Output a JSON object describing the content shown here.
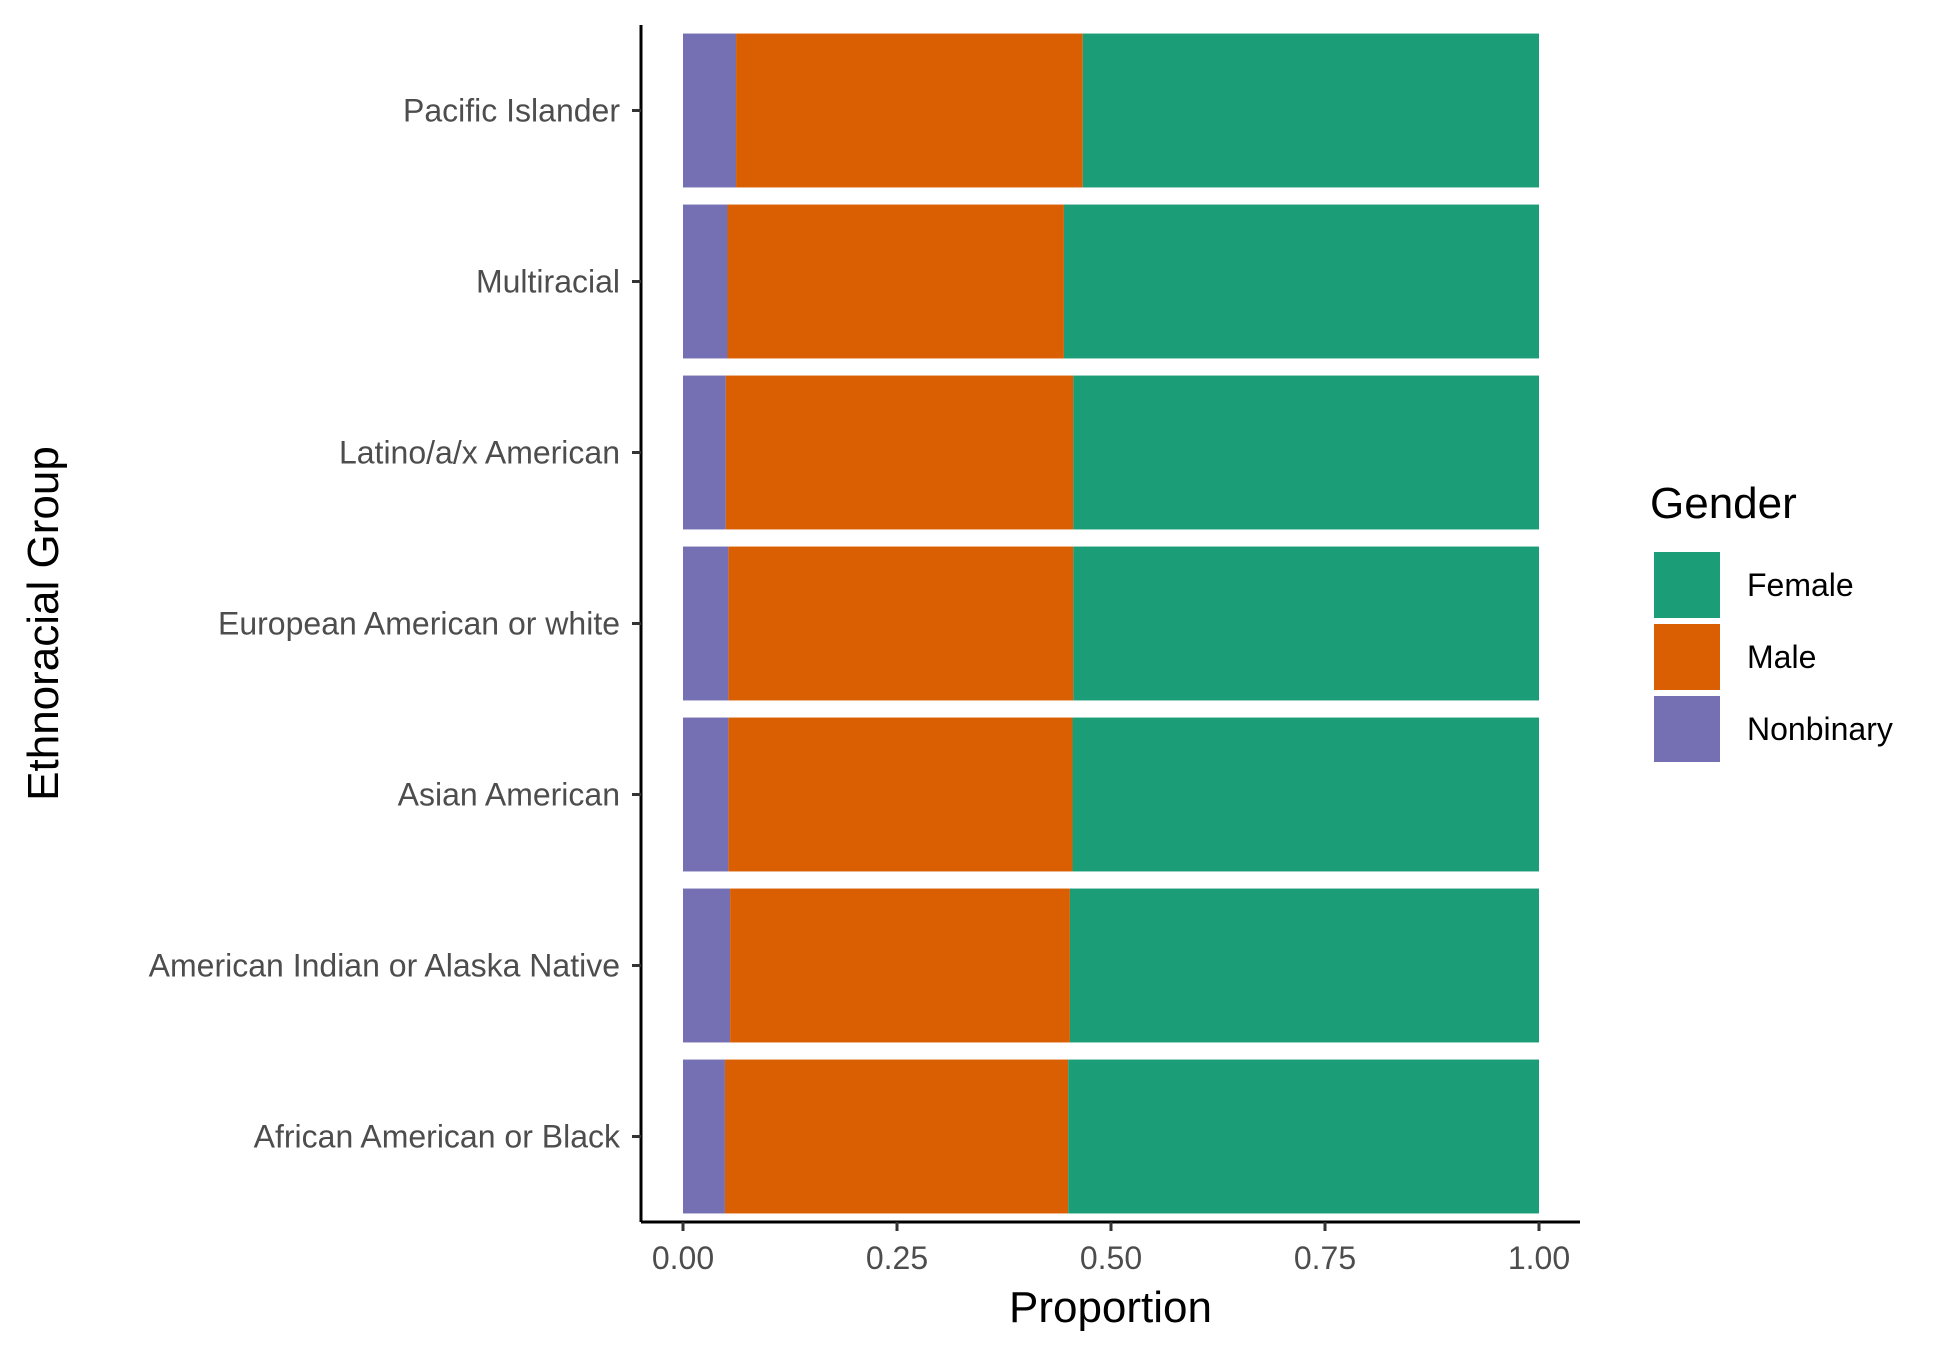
{
  "chart_data": {
    "type": "bar",
    "orientation": "horizontal",
    "stacked": true,
    "xlabel": "Proportion",
    "ylabel": "Ethnoracial Group",
    "xlim": [
      0,
      1
    ],
    "x_ticks": [
      "0.00",
      "0.25",
      "0.50",
      "0.75",
      "1.00"
    ],
    "x_tick_values": [
      0,
      0.25,
      0.5,
      0.75,
      1
    ],
    "grid": false,
    "categories": [
      "African American or Black",
      "American Indian or Alaska Native",
      "Asian American",
      "European American or white",
      "Latino/a/x American",
      "Multiracial",
      "Pacific Islander"
    ],
    "series": [
      {
        "name": "Nonbinary",
        "color": "#7570b3",
        "values": [
          0.049,
          0.055,
          0.053,
          0.053,
          0.05,
          0.052,
          0.062
        ]
      },
      {
        "name": "Male",
        "color": "#d95f02",
        "values": [
          0.401,
          0.397,
          0.402,
          0.403,
          0.406,
          0.393,
          0.405
        ]
      },
      {
        "name": "Female",
        "color": "#1b9e77",
        "values": [
          0.55,
          0.548,
          0.545,
          0.544,
          0.544,
          0.555,
          0.533
        ]
      }
    ],
    "legend": {
      "title": "Gender",
      "placement": "right",
      "entries": [
        {
          "name": "Female",
          "color": "#1b9e77"
        },
        {
          "name": "Male",
          "color": "#d95f02"
        },
        {
          "name": "Nonbinary",
          "color": "#7570b3"
        }
      ]
    }
  }
}
